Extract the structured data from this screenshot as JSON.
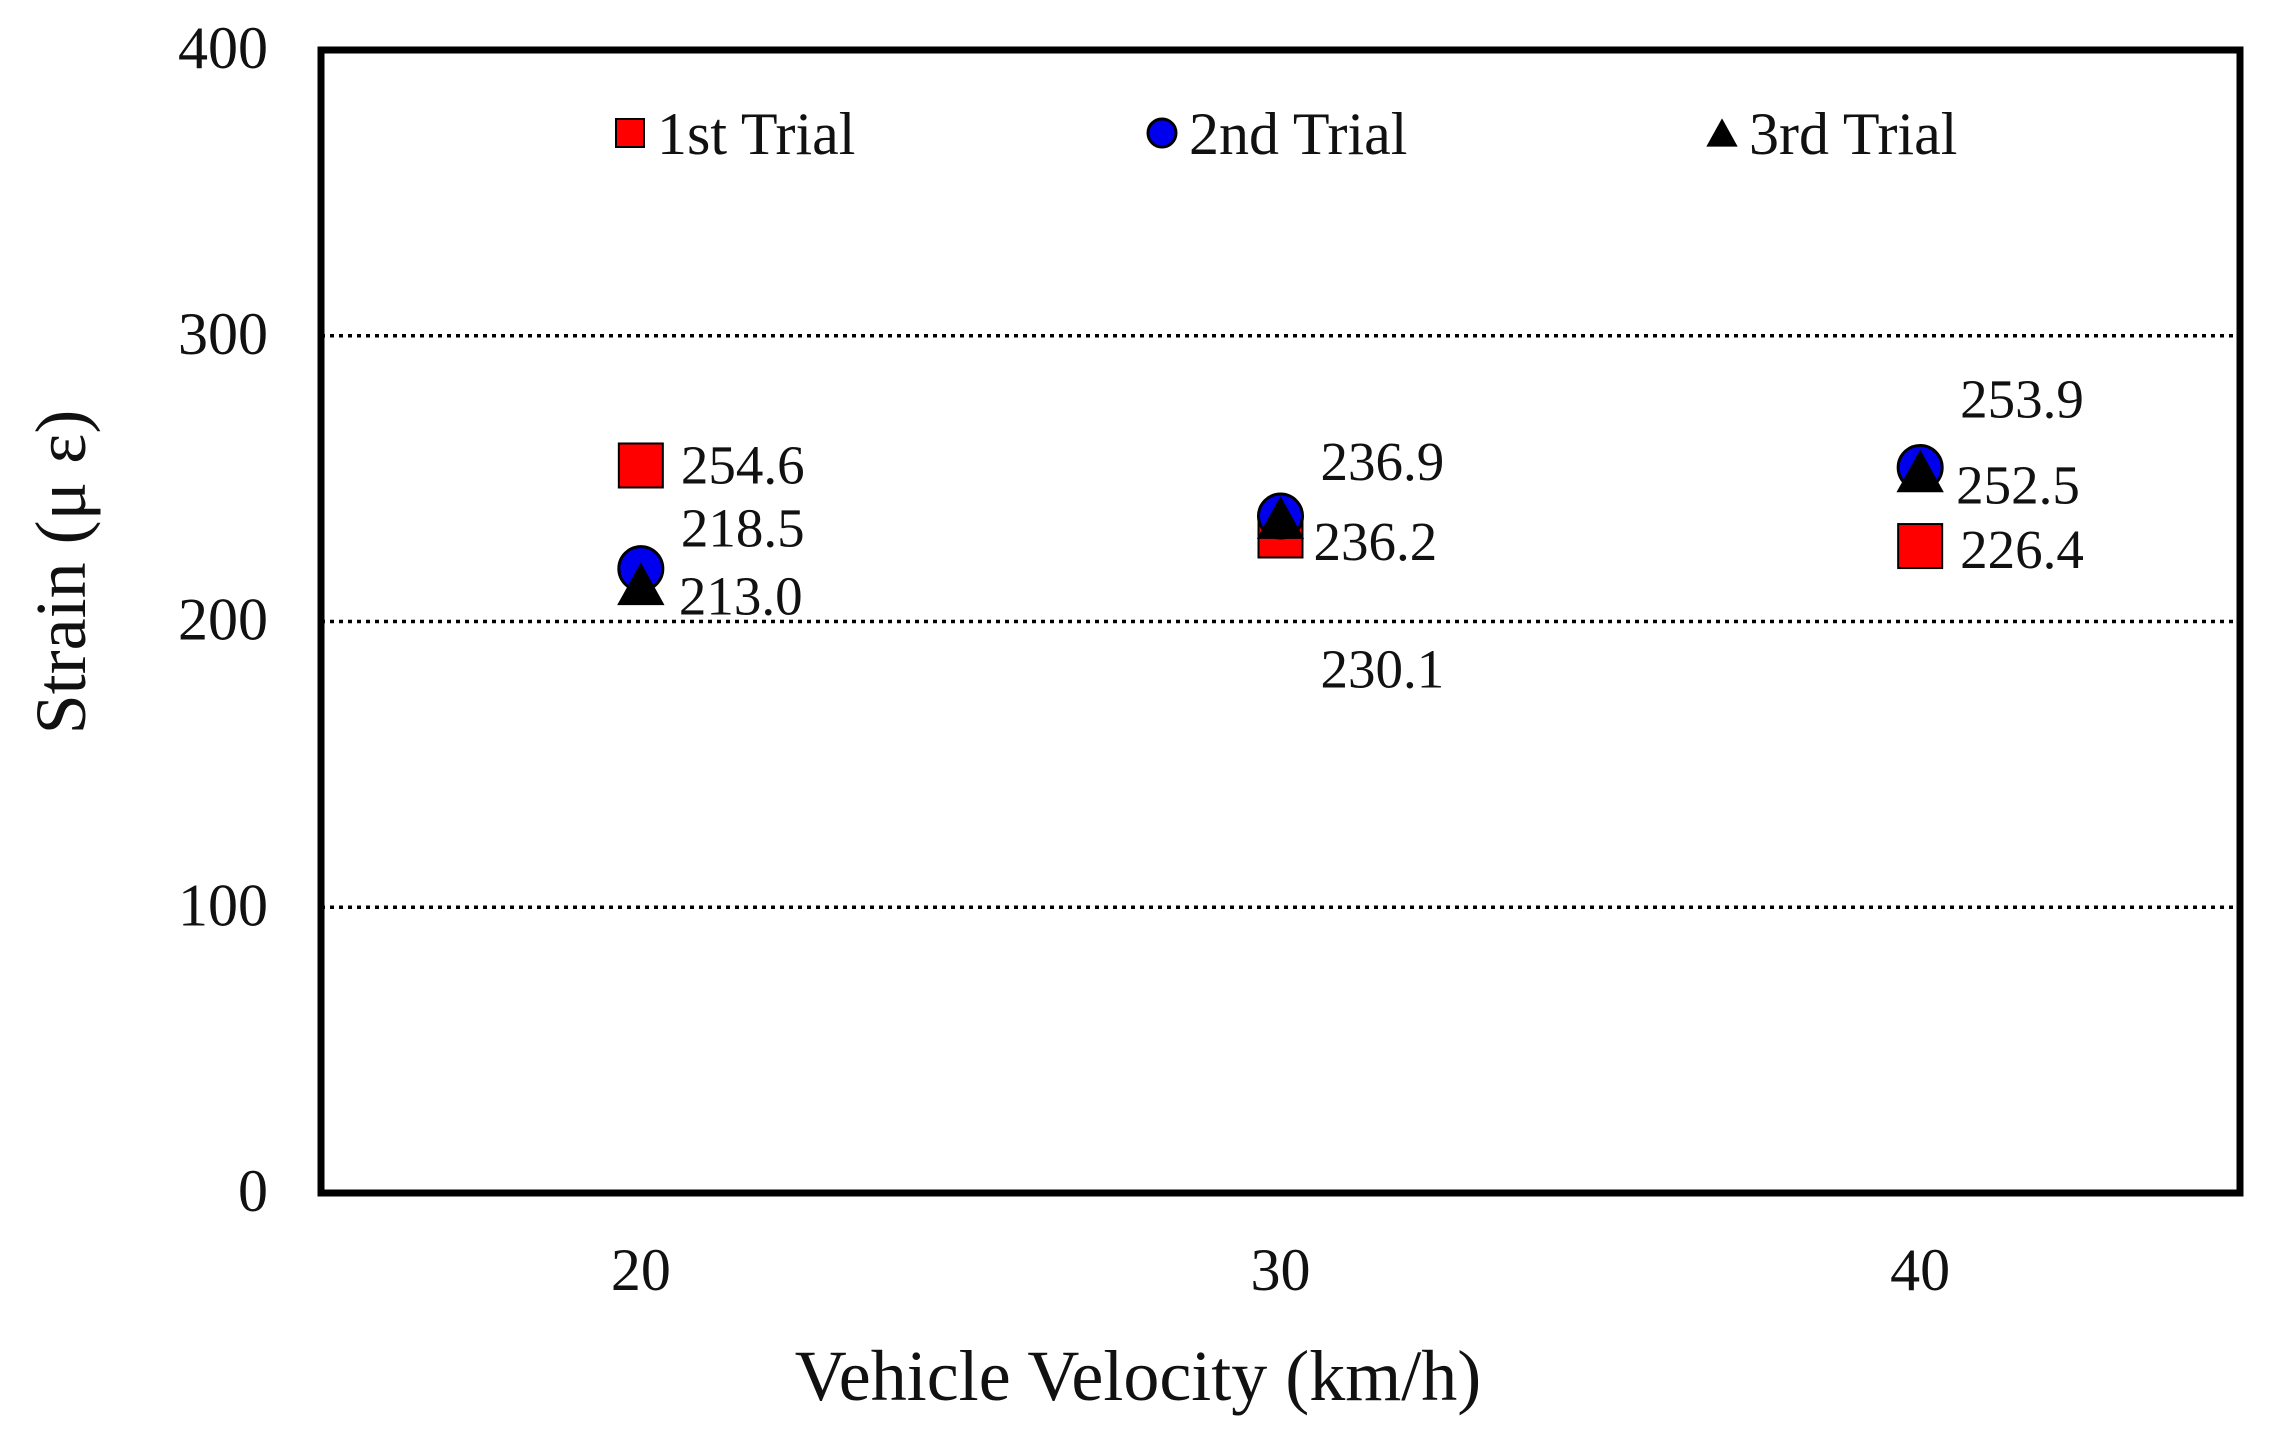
{
  "chart_data": {
    "type": "scatter",
    "title": "",
    "xlabel": "Vehicle Velocity (km/h)",
    "ylabel": "Strain (μ ε)",
    "categories": [
      "20",
      "30",
      "40"
    ],
    "x": [
      20,
      30,
      40
    ],
    "xlim": [
      15,
      45
    ],
    "ylim": [
      0,
      400
    ],
    "yticks": [
      "0",
      "100",
      "200",
      "300",
      "400"
    ],
    "ytick_values": [
      0,
      100,
      200,
      300,
      400
    ],
    "grid": "dotted horizontal at 100, 200, 300",
    "legend_position": "top inside, horizontal",
    "series": [
      {
        "name": "1st Trial",
        "marker": "square",
        "color": "#ff0000",
        "values": [
          254.6,
          230.1,
          226.4
        ],
        "labels": [
          "254.6",
          "230.1",
          "226.4"
        ]
      },
      {
        "name": "2nd Trial",
        "marker": "circle",
        "color": "#0000ee",
        "values": [
          218.5,
          236.9,
          253.9
        ],
        "labels": [
          "218.5",
          "236.9",
          "253.9"
        ]
      },
      {
        "name": "3rd Trial",
        "marker": "triangle",
        "color": "#000000",
        "values": [
          213.0,
          236.2,
          252.5
        ],
        "labels": [
          "213.0",
          "236.2",
          "252.5"
        ]
      }
    ]
  }
}
